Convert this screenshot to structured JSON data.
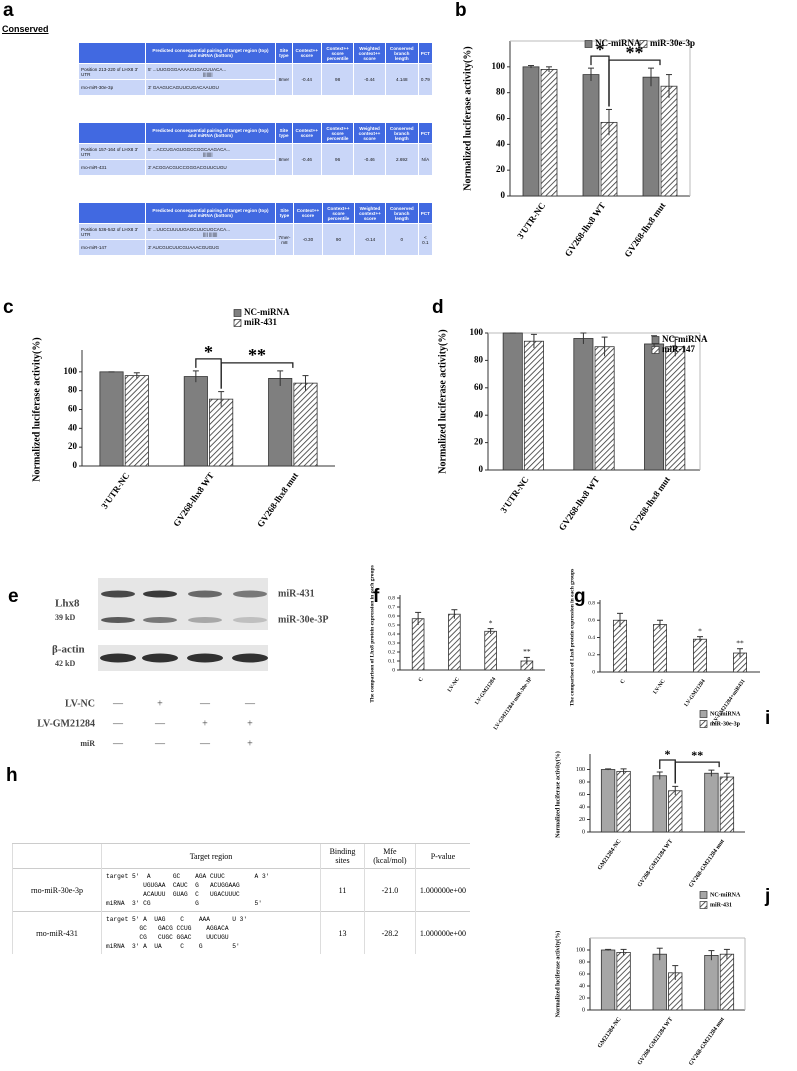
{
  "figure_a": {
    "panel": "a",
    "title": "Conserved",
    "header": [
      "Predicted consequential pairing of target region (top) and miRNA (bottom)",
      "Site type",
      "Context++ score",
      "Context++ score percentile",
      "Weighted context++ score",
      "Conserved branch length",
      "PCT"
    ],
    "blocks": [
      {
        "rows": [
          [
            "Position 213-220 of LHX8 3' UTR",
            "5' ...UUGGGGAAAACUGACUUACA...",
            "8mer",
            "-0.44",
            "98",
            "-0.44",
            "4.148",
            "0.79"
          ],
          [
            "rno-miR-30e-3p",
            "3' GAAGUCAGUUCUGACAAUGU"
          ]
        ],
        "pairing": "||||||||"
      },
      {
        "rows": [
          [
            "Position 157-164 of LHX8 3' UTR",
            "5' ...ACCUGAGUGGCCGGCAAGACA...",
            "8mer",
            "-0.46",
            "96",
            "-0.46",
            "2.692",
            "N/A"
          ],
          [
            "rno-miR-431",
            "3' ACGGACGUCCGGGACGUUCUGU"
          ]
        ],
        "pairing": "||||||||"
      },
      {
        "rows": [
          [
            "Position 536-542 of LHX8 3' UTR",
            "5' ...UUCCUUUUGAGCUUCUGCACA...",
            "7mer-m8",
            "-0.30",
            "90",
            "-0.14",
            "0",
            "< 0.1"
          ],
          [
            "rno-miR-147",
            "3' AUCGUCUUCGUAAACGUGUG"
          ]
        ],
        "pairing": "|||| |||||||"
      }
    ]
  },
  "chart_data": [
    {
      "type": "bar",
      "panel": "b",
      "y_label": "Normalized luciferase activity(%)",
      "categories": [
        "3'UTR-NC",
        "GV268-lhx8 WT",
        "GV268-lhx8 mut"
      ],
      "series": [
        {
          "name": "NC-miRNA",
          "color": "#7f7f7f",
          "values": [
            100,
            94,
            92
          ],
          "errors": [
            1,
            5,
            7
          ]
        },
        {
          "name": "miR-30e-3p",
          "color": "#ffffff",
          "hatch": true,
          "values": [
            98,
            57,
            85
          ],
          "errors": [
            2,
            10,
            9
          ]
        }
      ],
      "ylim": [
        0,
        120
      ],
      "yticks": [
        0,
        20,
        40,
        60,
        80,
        100
      ],
      "annotations": [
        "*",
        "**"
      ],
      "legend": "upper right"
    },
    {
      "type": "bar",
      "panel": "c",
      "y_label": "Normalized luciferase activity(%)",
      "categories": [
        "3'UTR-NC",
        "GV268-lhx8 WT",
        "GV268-lhx8 mut"
      ],
      "series": [
        {
          "name": "NC-miRNA",
          "color": "#7f7f7f",
          "values": [
            100,
            95,
            93
          ],
          "errors": [
            0,
            6,
            8
          ]
        },
        {
          "name": "miR-431",
          "color": "#ffffff",
          "hatch": true,
          "values": [
            96,
            71,
            88
          ],
          "errors": [
            3,
            8,
            8
          ]
        }
      ],
      "ylim": [
        0,
        120
      ],
      "yticks": [
        0,
        20,
        40,
        60,
        80,
        100
      ],
      "annotations": [
        "*",
        "**"
      ],
      "legend": "upper right"
    },
    {
      "type": "bar",
      "panel": "d",
      "y_label": "Normalized luciferase activity(%)",
      "categories": [
        "3'UTR-NC",
        "GV268-lhx8 WT",
        "GV268-lhx8 mut"
      ],
      "series": [
        {
          "name": "NC-miRNA",
          "color": "#7f7f7f",
          "values": [
            100,
            96,
            92
          ],
          "errors": [
            0,
            4,
            6
          ]
        },
        {
          "name": "miR-147",
          "color": "#ffffff",
          "hatch": true,
          "values": [
            94,
            90,
            90
          ],
          "errors": [
            5,
            7,
            7
          ]
        }
      ],
      "ylim": [
        0,
        100
      ],
      "yticks": [
        0,
        20,
        40,
        60,
        80,
        100
      ],
      "annotations": [],
      "legend": "upper right"
    },
    {
      "type": "bar",
      "panel": "f",
      "y_label": "The comparison of Lhx8 protein expression in each groups",
      "categories": [
        "C",
        "LV-NC",
        "LV-GM21284",
        "LV-GM21284+miR-30e-3P"
      ],
      "series": [
        {
          "name": "Lhx8",
          "color": "#ffffff",
          "hatch": true,
          "values": [
            0.57,
            0.62,
            0.43,
            0.1
          ],
          "errors": [
            0.07,
            0.05,
            0.03,
            0.04
          ]
        }
      ],
      "ylim": [
        0,
        0.8
      ],
      "yticks": [
        0,
        0.1,
        0.2,
        0.3,
        0.4,
        0.5,
        0.6,
        0.7,
        0.8
      ],
      "annotations": [
        "*",
        "**"
      ]
    },
    {
      "type": "bar",
      "panel": "g",
      "y_label": "The comparison of Lhx8 protein expression in each groups",
      "categories": [
        "C",
        "LV-NC",
        "LV-GM21284",
        "LV-GM21284+miR431"
      ],
      "series": [
        {
          "name": "Lhx8",
          "color": "#ffffff",
          "hatch": true,
          "values": [
            0.6,
            0.55,
            0.38,
            0.22
          ],
          "errors": [
            0.08,
            0.05,
            0.03,
            0.05
          ]
        }
      ],
      "ylim": [
        0,
        0.8
      ],
      "yticks": [
        0,
        0.2,
        0.4,
        0.6,
        0.8
      ],
      "annotations": [
        "*",
        "**"
      ]
    },
    {
      "type": "bar",
      "panel": "i",
      "y_label": "Normalized luciferase activity(%)",
      "categories": [
        "GM21284-NC",
        "GV268-GM21284 WT",
        "GV268-GM21284 mut"
      ],
      "series": [
        {
          "name": "NC-miRNA",
          "color": "#a6a6a6",
          "values": [
            100,
            90,
            94
          ],
          "errors": [
            1,
            6,
            5
          ]
        },
        {
          "name": "miR-30e-3p",
          "color": "#ffffff",
          "hatch": true,
          "values": [
            97,
            66,
            88
          ],
          "errors": [
            4,
            7,
            6
          ]
        }
      ],
      "ylim": [
        0,
        120
      ],
      "yticks": [
        0,
        20,
        40,
        60,
        80,
        100
      ],
      "annotations": [
        "*",
        "**"
      ],
      "legend": "upper right"
    },
    {
      "type": "bar",
      "panel": "j",
      "y_label": "Normalized luciferase activity(%)",
      "categories": [
        "GM21284-NC",
        "GV268-GM21284 WT",
        "GV268-GM21284 mut"
      ],
      "series": [
        {
          "name": "NC-miRNA",
          "color": "#a6a6a6",
          "values": [
            100,
            93,
            91
          ],
          "errors": [
            1,
            10,
            8
          ]
        },
        {
          "name": "miR-431",
          "color": "#ffffff",
          "hatch": true,
          "values": [
            96,
            62,
            93
          ],
          "errors": [
            5,
            12,
            8
          ]
        }
      ],
      "ylim": [
        0,
        120
      ],
      "yticks": [
        0,
        20,
        40,
        60,
        80,
        100
      ],
      "annotations": [],
      "legend": "upper right"
    }
  ],
  "figure_e": {
    "panel": "e",
    "protein": "Lhx8",
    "protein_size": "39 kD",
    "control": "β-actin",
    "control_size": "42 kD",
    "band_labels": [
      "miR-431",
      "miR-30e-3P"
    ],
    "rows": [
      {
        "label": "LV-NC",
        "signs": [
          "—",
          "+",
          "—",
          "—"
        ]
      },
      {
        "label": "LV-GM21284",
        "signs": [
          "—",
          "—",
          "+",
          "+"
        ]
      },
      {
        "label": "miR",
        "signs": [
          "—",
          "—",
          "—",
          "+"
        ]
      }
    ]
  },
  "figure_h": {
    "panel": "h",
    "header": [
      "Target region",
      "Binding sites",
      "Mfe (kcal/mol)",
      "P-value"
    ],
    "rows": [
      {
        "name": "rno-miR-30e-3p",
        "target": [
          "target 5'  A      GC    AGA CUUC        A 3'",
          "          UGUGAA  CAUC  G   ACUGGAAG",
          "          ACAUUU  GUAG  C   UGACUUUC",
          "miRNA  3' CG            G               5'"
        ],
        "binding_sites": 11,
        "mfe": "-21.0",
        "p_value": "1.000000e+00"
      },
      {
        "name": "rno-miR-431",
        "target": [
          "target 5' A  UAG    C    AAA      U 3'",
          "         GC   GACG CCUG    AGGACA",
          "         CG   CUGC GGAC    UUCUGU",
          "miRNA  3' A  UA     C    G        5'"
        ],
        "binding_sites": 13,
        "mfe": "-28.2",
        "p_value": "1.000000e+00"
      }
    ]
  }
}
